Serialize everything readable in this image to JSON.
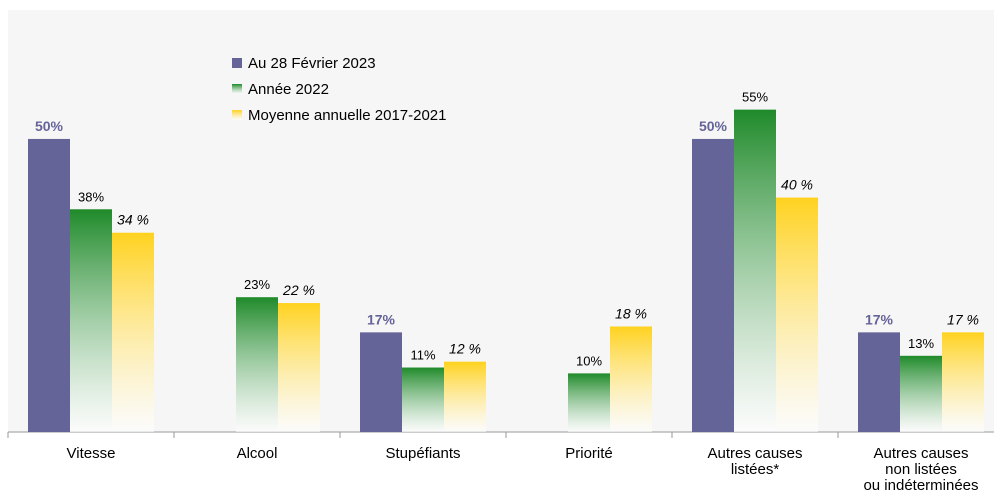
{
  "chart_data": {
    "type": "bar",
    "categories": [
      "Vitesse",
      "Alcool",
      "Stupéfiants",
      "Priorité",
      "Autres causes\nlistées*",
      "Autres causes\nnon listées\nou indéterminées"
    ],
    "series": [
      {
        "name": "Au 28 Février 2023",
        "color": "#656498",
        "gradient": false,
        "values": [
          50,
          null,
          17,
          null,
          50,
          17
        ],
        "value_labels": [
          "50%",
          null,
          "17%",
          null,
          "50%",
          "17%"
        ]
      },
      {
        "name": "Année 2022",
        "color": "#1f8a2a",
        "gradient": true,
        "values": [
          38,
          23,
          11,
          10,
          55,
          13
        ],
        "value_labels": [
          "38%",
          "23%",
          "11%",
          "10%",
          "55%",
          "13%"
        ]
      },
      {
        "name": "Moyenne annuelle 2017-2021",
        "color": "#ffd21f",
        "gradient": true,
        "values": [
          34,
          22,
          12,
          18,
          40,
          17
        ],
        "value_labels": [
          "34 %",
          "22 %",
          "12 %",
          "18 %",
          "40 %",
          "17 %"
        ]
      }
    ],
    "ylim": [
      0,
      72
    ],
    "legend": "top-left"
  }
}
